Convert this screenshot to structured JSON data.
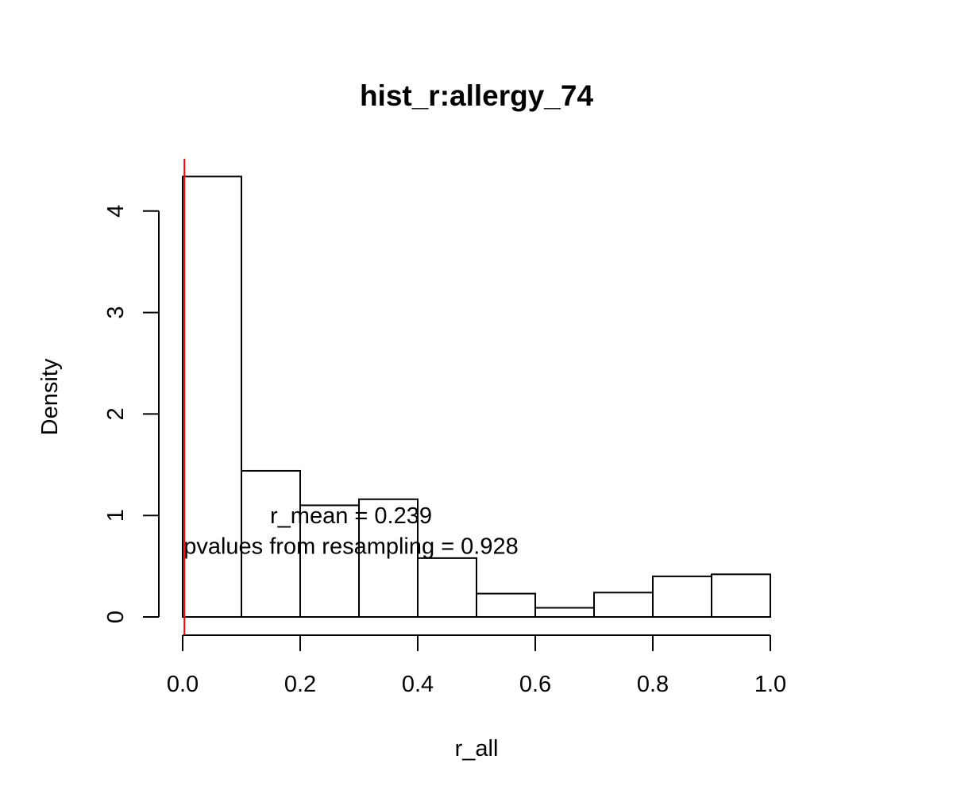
{
  "chart_data": {
    "type": "bar",
    "title": "hist_r:allergy_74",
    "xlabel": "r_all",
    "ylabel": "Density",
    "bins": [
      {
        "from": 0.0,
        "to": 0.1,
        "density": 4.34
      },
      {
        "from": 0.1,
        "to": 0.2,
        "density": 1.44
      },
      {
        "from": 0.2,
        "to": 0.3,
        "density": 1.1
      },
      {
        "from": 0.3,
        "to": 0.4,
        "density": 1.16
      },
      {
        "from": 0.4,
        "to": 0.5,
        "density": 0.58
      },
      {
        "from": 0.5,
        "to": 0.6,
        "density": 0.23
      },
      {
        "from": 0.6,
        "to": 0.7,
        "density": 0.09
      },
      {
        "from": 0.7,
        "to": 0.8,
        "density": 0.24
      },
      {
        "from": 0.8,
        "to": 0.9,
        "density": 0.4
      },
      {
        "from": 0.9,
        "to": 1.0,
        "density": 0.42
      }
    ],
    "xlim": [
      0,
      1
    ],
    "ylim": [
      0,
      4.5
    ],
    "x_ticks": [
      0.0,
      0.2,
      0.4,
      0.6,
      0.8,
      1.0
    ],
    "x_tick_labels": [
      "0.0",
      "0.2",
      "0.4",
      "0.6",
      "0.8",
      "1.0"
    ],
    "y_ticks": [
      0,
      1,
      2,
      3,
      4
    ],
    "y_tick_labels": [
      "0",
      "1",
      "2",
      "3",
      "4"
    ],
    "reference_line": {
      "x": 0.003,
      "color": "#ff0000"
    },
    "annotations": [
      {
        "text": "r_mean = 0.239",
        "x": 0.3,
        "y": 1.0
      },
      {
        "text": "pvalues from resampling = 0.928",
        "x": 0.3,
        "y": 0.7
      }
    ],
    "bar_fill": "#ffffff",
    "bar_stroke": "#000000",
    "grid": false,
    "legend": "none"
  }
}
